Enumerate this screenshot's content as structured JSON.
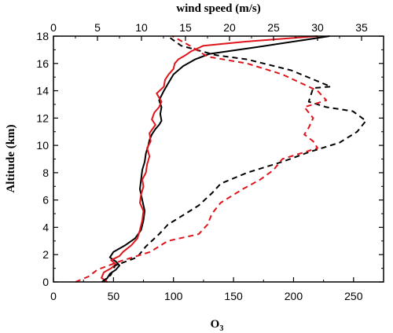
{
  "chart_data": {
    "type": "line",
    "xlabel_bottom": "O",
    "xlabel_bottom_sub": "3",
    "xlabel_top": "wind speed (m/s)",
    "ylabel": "Altitude (km)",
    "xlim_bottom": [
      0,
      275
    ],
    "xlim_top": [
      0,
      37.5
    ],
    "ylim": [
      0,
      18
    ],
    "bottom_ticks": [
      "0",
      "50",
      "100",
      "150",
      "200",
      "250"
    ],
    "top_ticks": [
      "0",
      "5",
      "10",
      "15",
      "20",
      "25",
      "30",
      "35"
    ],
    "y_ticks": [
      "0",
      "2",
      "4",
      "6",
      "8",
      "10",
      "12",
      "14",
      "16",
      "18"
    ],
    "grid": false,
    "colors": {
      "black": "#000000",
      "red": "#e0141b"
    },
    "series": [
      {
        "axis": "bottom",
        "style": "solid",
        "color": "#000000",
        "x": [
          42,
          45,
          47,
          52,
          55,
          52,
          47,
          50,
          60,
          68,
          73,
          75,
          76,
          74,
          72,
          73,
          74,
          76,
          77,
          79,
          80,
          82,
          85,
          88,
          90,
          89,
          90,
          88,
          92,
          96,
          100,
          108,
          118,
          130,
          170,
          230
        ],
        "y": [
          0,
          0.3,
          0.6,
          0.9,
          1.2,
          1.5,
          1.8,
          2.2,
          2.7,
          3.2,
          3.8,
          4.5,
          5.2,
          6.0,
          6.8,
          7.5,
          8.2,
          8.8,
          9.4,
          10.0,
          10.4,
          10.8,
          11.2,
          11.5,
          11.8,
          12.3,
          12.8,
          13.3,
          14.0,
          14.6,
          15.2,
          15.8,
          16.3,
          16.7,
          17.2,
          18.0
        ]
      },
      {
        "axis": "bottom",
        "style": "solid",
        "color": "#e0141b",
        "x": [
          45,
          40,
          42,
          48,
          52,
          48,
          55,
          58,
          65,
          70,
          72,
          74,
          75,
          72,
          73,
          75,
          74,
          77,
          78,
          80,
          78,
          81,
          80,
          85,
          82,
          84,
          88,
          90,
          86,
          92,
          93,
          96,
          100,
          101,
          104,
          110,
          115,
          120,
          125,
          160,
          220
        ],
        "y": [
          0,
          0.3,
          0.7,
          1.0,
          1.3,
          1.6,
          1.9,
          2.2,
          2.7,
          3.2,
          3.8,
          4.5,
          5.2,
          5.8,
          6.4,
          7.0,
          7.5,
          8.0,
          8.6,
          9.2,
          9.8,
          10.3,
          10.9,
          11.5,
          11.9,
          12.4,
          12.8,
          13.2,
          13.8,
          14.3,
          14.8,
          15.2,
          15.6,
          16.0,
          16.3,
          16.6,
          16.9,
          17.1,
          17.3,
          17.6,
          18.0
        ]
      },
      {
        "axis": "top",
        "style": "dashed",
        "color": "#000000",
        "x": [
          5.5,
          6.5,
          7.0,
          9.5,
          10.5,
          12.0,
          13.0,
          15.0,
          16.5,
          18.0,
          19.0,
          22.0,
          26.0,
          29.0,
          32.5,
          34.5,
          35.5,
          34.0,
          31.0,
          29.0,
          29.5,
          31.5,
          27.0,
          22.0,
          18.5,
          14.5,
          13.0
        ],
        "y": [
          0,
          0.5,
          1.2,
          1.8,
          2.6,
          3.5,
          4.2,
          5.0,
          5.6,
          6.5,
          7.2,
          8.0,
          8.8,
          9.5,
          10.2,
          11.0,
          11.8,
          12.5,
          12.8,
          13.2,
          14.2,
          14.3,
          15.5,
          16.3,
          16.6,
          17.3,
          18.0
        ]
      },
      {
        "axis": "top",
        "style": "dashed",
        "color": "#e0141b",
        "x": [
          2.5,
          4.0,
          5.0,
          7.5,
          11.0,
          13.0,
          16.5,
          17.5,
          18.0,
          19.0,
          21.5,
          23.5,
          25.0,
          26.0,
          30.0,
          29.5,
          28.5,
          29.0,
          29.5,
          28.5,
          31.0,
          30.0,
          26.0,
          22.0,
          17.5,
          15.5,
          13.5
        ],
        "y": [
          0,
          0.4,
          0.9,
          1.5,
          2.2,
          3.0,
          3.5,
          4.2,
          5.0,
          5.8,
          6.8,
          7.5,
          8.2,
          9.0,
          9.8,
          10.3,
          10.8,
          11.3,
          12.0,
          12.8,
          13.3,
          14.0,
          15.2,
          16.0,
          16.5,
          17.3,
          18.0
        ]
      }
    ]
  }
}
